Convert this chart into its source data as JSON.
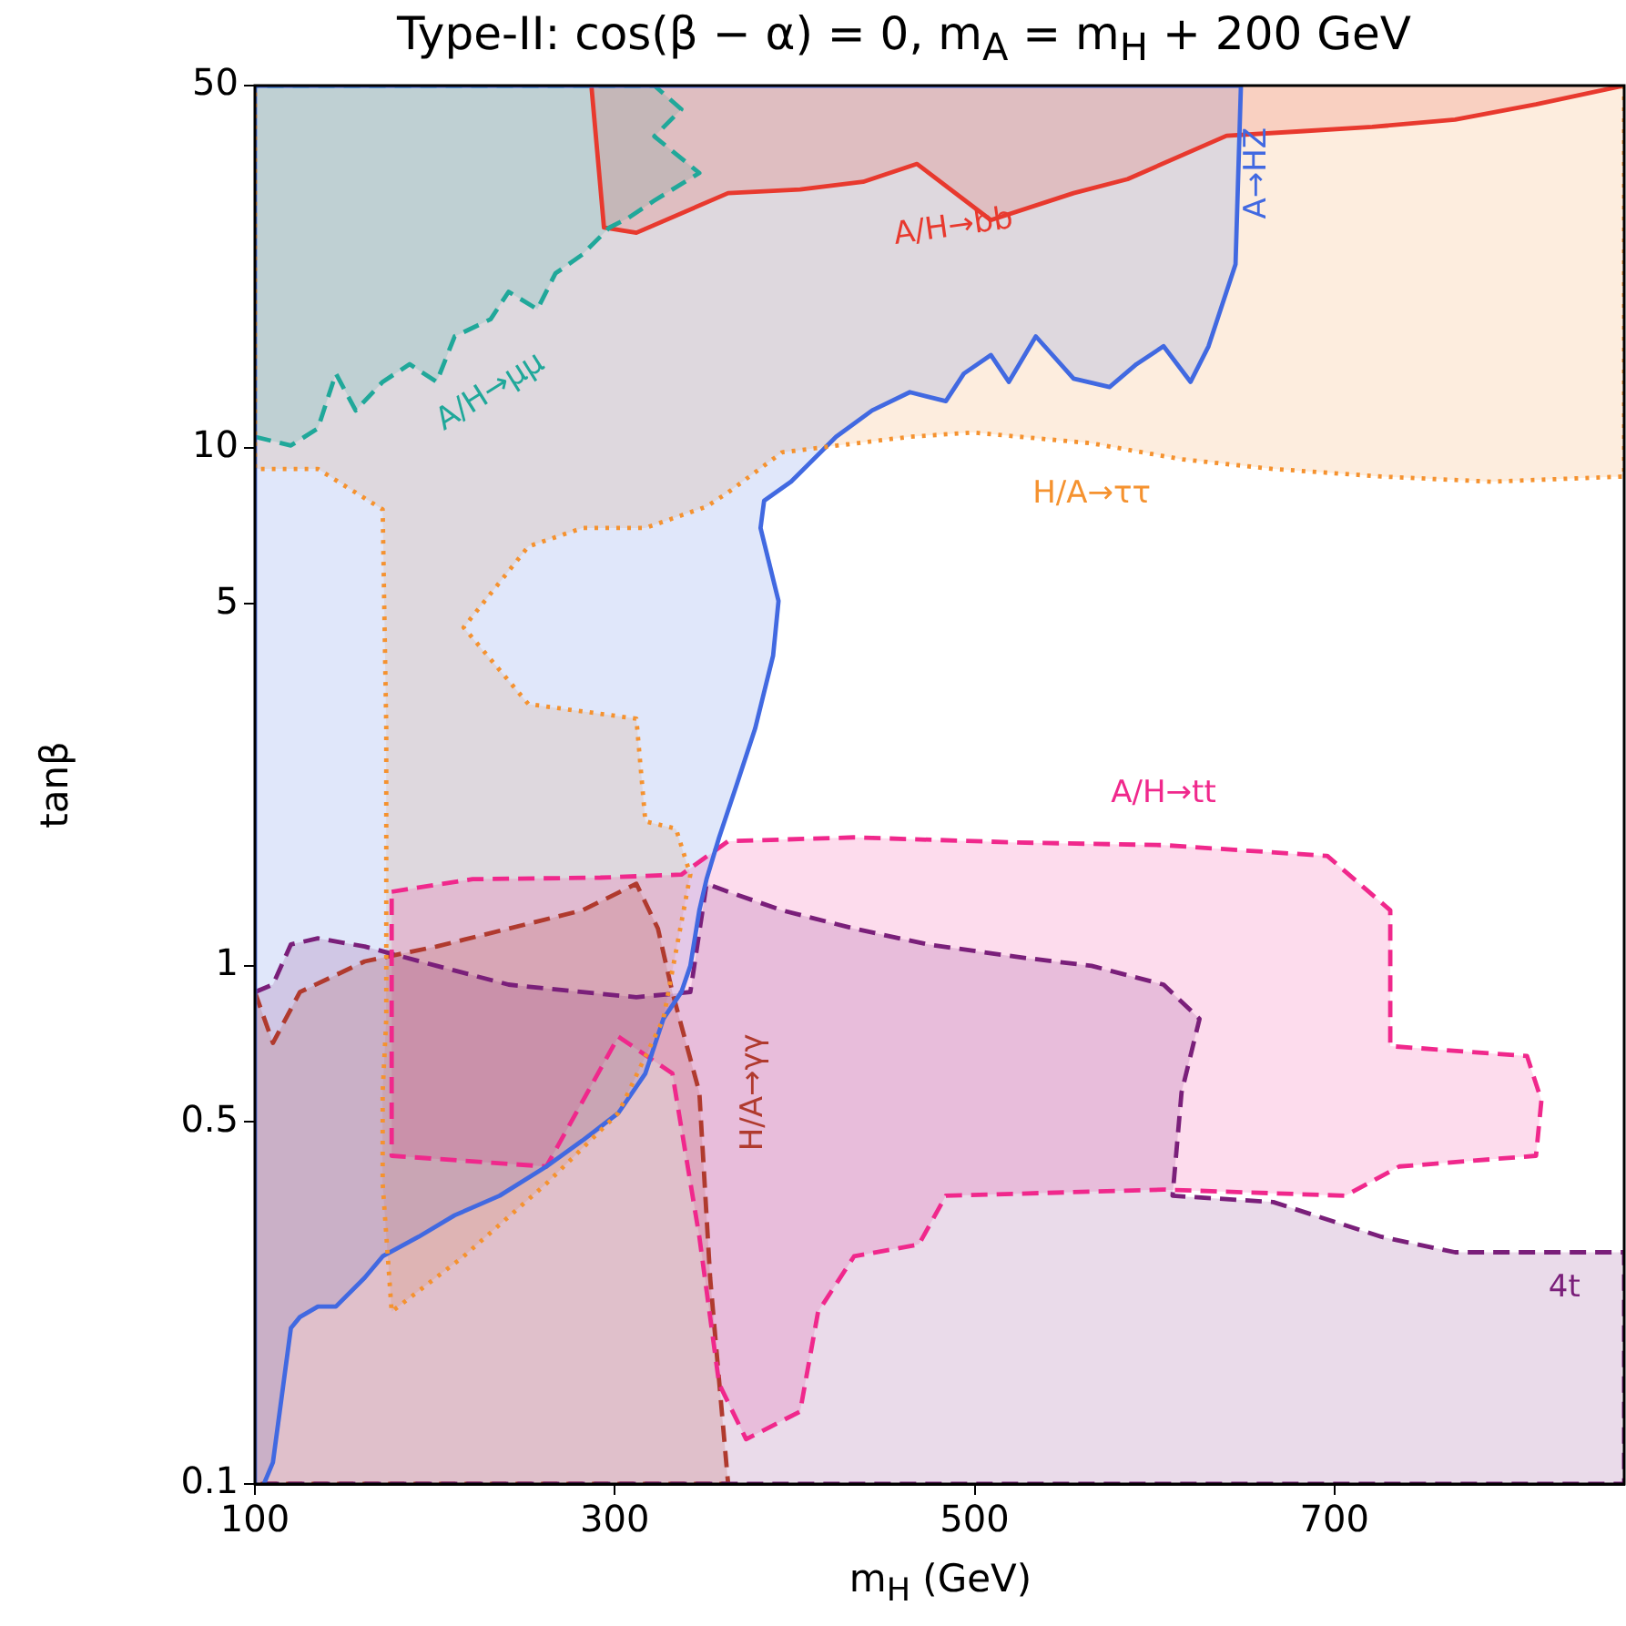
{
  "chart_data": {
    "type": "area",
    "title": "Type-II: cos(β − α) = 0, m$_{A}$ = m$_{H}$ + 200 GeV",
    "xlabel": "m$_{H}$ (GeV)",
    "ylabel": "tanβ",
    "xlim": [
      100,
      861
    ],
    "xticks": [
      100,
      300,
      500,
      700
    ],
    "ylim": [
      0.1,
      50
    ],
    "yticks": [
      0.1,
      0.5,
      1,
      5,
      10,
      50
    ],
    "log": "y",
    "series": [
      {
        "name": "H/A→ττ",
        "color": "#f5922f",
        "line_style": "dotted",
        "x": [
          861,
          861,
          787,
          726,
          666,
          615,
          565,
          499,
          464,
          393,
          363,
          351,
          317,
          282,
          252,
          216,
          252,
          312,
          317,
          334,
          342,
          327,
          302,
          262,
          216,
          176,
          171,
          171,
          173,
          173,
          171,
          135,
          100,
          100
        ],
        "values": [
          50,
          8.8,
          8.6,
          8.8,
          9.1,
          9.5,
          10.2,
          10.7,
          10.5,
          9.8,
          8.2,
          7.7,
          7.0,
          7.0,
          6.45,
          4.5,
          3.2,
          3.0,
          1.9,
          1.84,
          1.5,
          0.79,
          0.52,
          0.38,
          0.275,
          0.215,
          0.38,
          0.57,
          0.79,
          2.87,
          7.6,
          9.1,
          9.1,
          50
        ]
      },
      {
        "name": "A→HZ",
        "color": "#4169e1",
        "line_style": "solid",
        "x": [
          105,
          110,
          120,
          125,
          135,
          145,
          161,
          171,
          191,
          211,
          236,
          262,
          282,
          302,
          317,
          327,
          337,
          342,
          347,
          351,
          358,
          368,
          378,
          388,
          391,
          381,
          383,
          398,
          423,
          443,
          464,
          484,
          494,
          509,
          519,
          534,
          555,
          575,
          590,
          605,
          620,
          630,
          645,
          648,
          100,
          100
        ],
        "values": [
          0.1,
          0.11,
          0.2,
          0.21,
          0.22,
          0.22,
          0.25,
          0.275,
          0.3,
          0.33,
          0.36,
          0.41,
          0.46,
          0.52,
          0.62,
          0.79,
          0.89,
          1.0,
          1.28,
          1.47,
          1.77,
          2.25,
          2.87,
          3.97,
          5.06,
          7.0,
          7.9,
          8.6,
          10.5,
          11.8,
          12.8,
          12.3,
          13.9,
          15.1,
          13.4,
          16.4,
          13.6,
          13.1,
          14.5,
          15.7,
          13.4,
          15.7,
          22.6,
          50,
          50,
          0.1
        ]
      },
      {
        "name": "A/H→μμ",
        "color": "#20a89a",
        "line_style": "dashed",
        "x": [
          100,
          120,
          135,
          145,
          156,
          171,
          186,
          201,
          211,
          231,
          241,
          257,
          267,
          282,
          297,
          307,
          322,
          347,
          322,
          337,
          322,
          100
        ],
        "values": [
          10.5,
          10.1,
          10.9,
          13.9,
          11.8,
          13.4,
          14.5,
          13.4,
          16.4,
          17.7,
          20.0,
          18.5,
          21.7,
          23.6,
          26.6,
          27.7,
          30.0,
          33.9,
          39.9,
          45.0,
          50,
          50
        ]
      },
      {
        "name": "A/H→bb",
        "color": "#e8392e",
        "line_style": "solid",
        "x": [
          287,
          294,
          312,
          363,
          403,
          438,
          468,
          509,
          555,
          585,
          640,
          681,
          721,
          767,
          812,
          861
        ],
        "values": [
          50,
          26.6,
          26,
          31,
          31.5,
          32.6,
          35.3,
          27.5,
          31,
          33,
          40,
          40.8,
          41.6,
          43,
          46,
          50
        ]
      },
      {
        "name": "A/H→tt",
        "color": "#f0288c",
        "line_style": "dashed",
        "x": [
          176,
          221,
          292,
          337,
          363,
          433,
          524,
          605,
          696,
          731,
          731,
          807,
          815,
          812,
          736,
          706,
          605,
          484,
          469,
          433,
          413,
          403,
          373,
          358,
          347,
          332,
          302,
          262,
          176,
          176
        ],
        "values": [
          1.39,
          1.47,
          1.48,
          1.5,
          1.74,
          1.77,
          1.73,
          1.71,
          1.63,
          1.28,
          0.7,
          0.67,
          0.55,
          0.43,
          0.41,
          0.36,
          0.37,
          0.36,
          0.29,
          0.275,
          0.215,
          0.138,
          0.122,
          0.156,
          0.3,
          0.62,
          0.73,
          0.41,
          0.43,
          1.39
        ]
      },
      {
        "name": "4t",
        "color": "#7a1f7a",
        "line_style": "dashed",
        "x": [
          100,
          110,
          120,
          135,
          161,
          201,
          241,
          282,
          312,
          342,
          351,
          363,
          393,
          433,
          474,
          524,
          565,
          605,
          625,
          615,
          610,
          666,
          726,
          767,
          861,
          861,
          100
        ],
        "values": [
          0.89,
          0.92,
          1.1,
          1.13,
          1.09,
          1.0,
          0.92,
          0.89,
          0.87,
          0.89,
          1.44,
          1.39,
          1.28,
          1.18,
          1.1,
          1.04,
          1.0,
          0.92,
          0.79,
          0.57,
          0.36,
          0.35,
          0.3,
          0.28,
          0.28,
          0.1,
          0.1
        ]
      },
      {
        "name": "H/A→γγ",
        "color": "#b03a2e",
        "line_style": "dashed",
        "x": [
          100,
          110,
          125,
          161,
          201,
          241,
          282,
          312,
          324,
          332,
          347,
          353,
          363,
          100
        ],
        "values": [
          0.89,
          0.71,
          0.89,
          1.02,
          1.09,
          1.18,
          1.28,
          1.44,
          1.18,
          0.89,
          0.57,
          0.25,
          0.1,
          0.1
        ]
      }
    ]
  }
}
